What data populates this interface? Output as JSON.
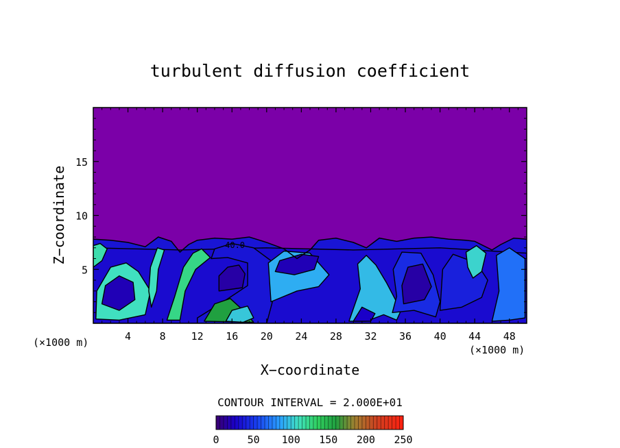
{
  "chart_data": {
    "type": "heatmap",
    "title": "turbulent diffusion coefficient",
    "xlabel": "X−coordinate",
    "ylabel": "Z−coordinate",
    "x_unit_left": "(×1000 m)",
    "x_unit_right": "(×1000 m)",
    "xlim": [
      0,
      50
    ],
    "ylim": [
      0,
      20
    ],
    "x_ticks": [
      4,
      8,
      12,
      16,
      20,
      24,
      28,
      32,
      36,
      40,
      44,
      48
    ],
    "y_ticks": [
      5,
      10,
      15
    ],
    "contour_interval_text": "CONTOUR INTERVAL = 2.000E+01",
    "contour_labels": [
      "40.0"
    ],
    "background_color": "#7b00a8",
    "colorbar": {
      "range": [
        0,
        250
      ],
      "tick_values": [
        0,
        50,
        100,
        150,
        200,
        250
      ]
    },
    "turbulent_layer_top_profile": [
      [
        0,
        7.8
      ],
      [
        2,
        7.7
      ],
      [
        4,
        7.5
      ],
      [
        6,
        7.1
      ],
      [
        7.5,
        8.0
      ],
      [
        9,
        7.6
      ],
      [
        10,
        6.6
      ],
      [
        11,
        7.3
      ],
      [
        12,
        7.7
      ],
      [
        14,
        7.9
      ],
      [
        16,
        7.8
      ],
      [
        18,
        8.0
      ],
      [
        20,
        7.5
      ],
      [
        22,
        6.9
      ],
      [
        23.5,
        6.0
      ],
      [
        25,
        6.8
      ],
      [
        26,
        7.7
      ],
      [
        28,
        7.9
      ],
      [
        30,
        7.5
      ],
      [
        31.5,
        7.0
      ],
      [
        33,
        7.9
      ],
      [
        35,
        7.6
      ],
      [
        37,
        7.9
      ],
      [
        39,
        8.0
      ],
      [
        41,
        7.8
      ],
      [
        43,
        7.7
      ],
      [
        44,
        7.6
      ],
      [
        46,
        6.8
      ],
      [
        47,
        7.3
      ],
      [
        48.5,
        7.9
      ],
      [
        50,
        7.8
      ]
    ],
    "eddy_regions": [
      {
        "value": 30,
        "points": [
          [
            0,
            0
          ],
          [
            50,
            0
          ],
          [
            50,
            6.5
          ],
          [
            40,
            7
          ],
          [
            30,
            6.8
          ],
          [
            20,
            7
          ],
          [
            10,
            6.8
          ],
          [
            0,
            7
          ]
        ]
      },
      {
        "value": 110,
        "points": [
          [
            0.3,
            0.4
          ],
          [
            3,
            0.3
          ],
          [
            6,
            0.8
          ],
          [
            6.6,
            3
          ],
          [
            5.2,
            4.8
          ],
          [
            3.8,
            5.6
          ],
          [
            2,
            5.2
          ],
          [
            0.4,
            3
          ]
        ]
      },
      {
        "value": 20,
        "points": [
          [
            1,
            1.8
          ],
          [
            3,
            1.2
          ],
          [
            4.8,
            2.2
          ],
          [
            4.6,
            3.8
          ],
          [
            3,
            4.4
          ],
          [
            1.4,
            3.5
          ]
        ]
      },
      {
        "value": 125,
        "points": [
          [
            8.5,
            0.3
          ],
          [
            9.4,
            2.5
          ],
          [
            10.4,
            5.2
          ],
          [
            11.5,
            6.5
          ],
          [
            12.5,
            6.9
          ],
          [
            13.5,
            6.1
          ],
          [
            11.8,
            5
          ],
          [
            10.6,
            3
          ],
          [
            10,
            0.3
          ]
        ]
      },
      {
        "value": 35,
        "points": [
          [
            12,
            0
          ],
          [
            20,
            0
          ],
          [
            21,
            3
          ],
          [
            20.5,
            5.8
          ],
          [
            18.5,
            7
          ],
          [
            16,
            7.4
          ],
          [
            14,
            6.9
          ],
          [
            13.6,
            6
          ],
          [
            15.5,
            6.1
          ],
          [
            17.8,
            5.6
          ],
          [
            17.8,
            3.5
          ],
          [
            15,
            2
          ],
          [
            12,
            0.5
          ]
        ]
      },
      {
        "value": 160,
        "points": [
          [
            12.8,
            0.2
          ],
          [
            14,
            1.8
          ],
          [
            15.8,
            2.3
          ],
          [
            17.3,
            1.2
          ],
          [
            18.5,
            0.1
          ]
        ]
      },
      {
        "value": 100,
        "points": [
          [
            15.3,
            0.2
          ],
          [
            16,
            1.2
          ],
          [
            17.8,
            1.6
          ],
          [
            18.5,
            0.5
          ],
          [
            17.3,
            0.1
          ]
        ]
      },
      {
        "value": 15,
        "points": [
          [
            14.5,
            3
          ],
          [
            17.2,
            3.3
          ],
          [
            17.5,
            4.6
          ],
          [
            16.8,
            5.4
          ],
          [
            15.5,
            5.2
          ],
          [
            14.5,
            4.4
          ]
        ]
      },
      {
        "value": 90,
        "points": [
          [
            20.5,
            2
          ],
          [
            23.5,
            3
          ],
          [
            26,
            3.4
          ],
          [
            27.2,
            4.5
          ],
          [
            25,
            6.5
          ],
          [
            22,
            6.7
          ],
          [
            20.2,
            5.6
          ]
        ]
      },
      {
        "value": 20,
        "points": [
          [
            21,
            4.8
          ],
          [
            23.2,
            4.5
          ],
          [
            25.5,
            5
          ],
          [
            26,
            6.2
          ],
          [
            24,
            6.4
          ],
          [
            21.5,
            5.8
          ]
        ]
      },
      {
        "value": 95,
        "points": [
          [
            29.5,
            0.2
          ],
          [
            31.5,
            0.2
          ],
          [
            33.5,
            0.8
          ],
          [
            35,
            0.3
          ],
          [
            35.5,
            1.2
          ],
          [
            33.8,
            3.8
          ],
          [
            32.6,
            5.4
          ],
          [
            31.5,
            6.3
          ],
          [
            30.5,
            5.5
          ],
          [
            30.8,
            3.2
          ]
        ]
      },
      {
        "value": 25,
        "points": [
          [
            30,
            0.2
          ],
          [
            31,
            1.5
          ],
          [
            32.5,
            0.9
          ],
          [
            32,
            0.2
          ]
        ]
      },
      {
        "value": 45,
        "points": [
          [
            34.5,
            1
          ],
          [
            37,
            1.2
          ],
          [
            39.5,
            0.6
          ],
          [
            40,
            2
          ],
          [
            39.2,
            4.5
          ],
          [
            37.8,
            6.5
          ],
          [
            35.6,
            6.6
          ],
          [
            34.6,
            5
          ],
          [
            35,
            2.5
          ]
        ]
      },
      {
        "value": 15,
        "points": [
          [
            35.8,
            1.8
          ],
          [
            38.2,
            2.2
          ],
          [
            39,
            3.4
          ],
          [
            38,
            5.5
          ],
          [
            36.3,
            5.2
          ],
          [
            35.6,
            3.5
          ]
        ]
      },
      {
        "value": 40,
        "points": [
          [
            40,
            1.2
          ],
          [
            42.5,
            1.5
          ],
          [
            44.8,
            2.4
          ],
          [
            45.5,
            4
          ],
          [
            44.2,
            5.6
          ],
          [
            41.5,
            6.4
          ],
          [
            40.3,
            5
          ]
        ]
      },
      {
        "value": 105,
        "points": [
          [
            43.8,
            4.2
          ],
          [
            44.8,
            4.8
          ],
          [
            45.3,
            6.5
          ],
          [
            44.2,
            7.2
          ],
          [
            43,
            6.6
          ],
          [
            43.2,
            5.2
          ]
        ]
      },
      {
        "value": 70,
        "points": [
          [
            46,
            0.2
          ],
          [
            48,
            0.3
          ],
          [
            49.8,
            0.5
          ],
          [
            49.8,
            6
          ],
          [
            48,
            7
          ],
          [
            46.5,
            6.3
          ],
          [
            46.8,
            3
          ]
        ]
      },
      {
        "value": 115,
        "points": [
          [
            0,
            5.2
          ],
          [
            1,
            5.8
          ],
          [
            1.6,
            6.9
          ],
          [
            0.8,
            7.4
          ],
          [
            0,
            7.2
          ]
        ]
      },
      {
        "value": 110,
        "points": [
          [
            6.7,
            1.5
          ],
          [
            7.3,
            3
          ],
          [
            7.5,
            5
          ],
          [
            8.2,
            6.8
          ],
          [
            7.4,
            7
          ],
          [
            6.6,
            5.2
          ],
          [
            6.4,
            3
          ]
        ]
      }
    ]
  }
}
